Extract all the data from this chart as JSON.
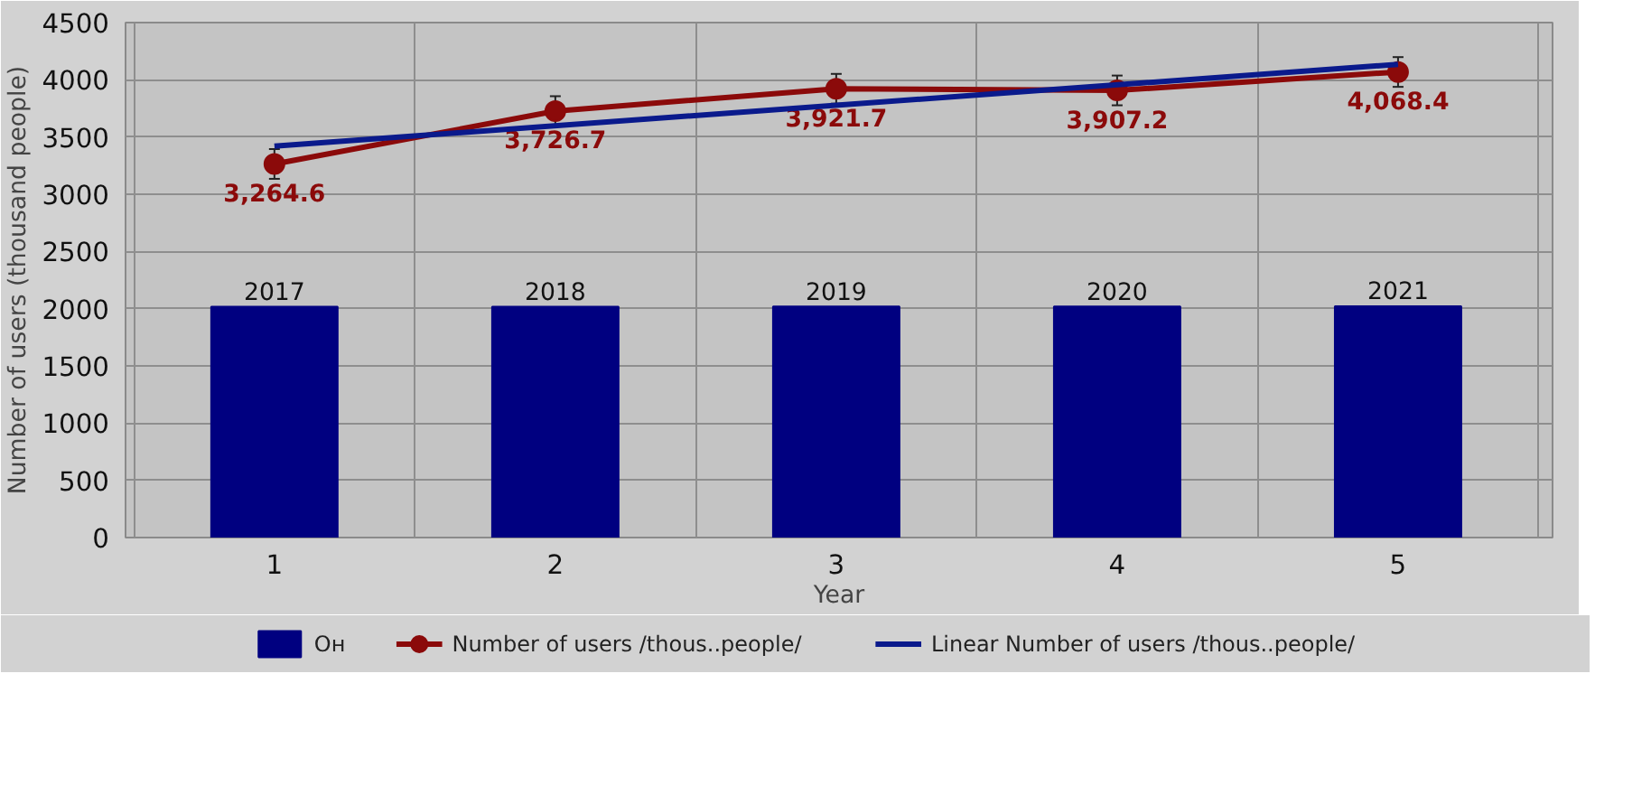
{
  "chart_data": {
    "type": "bar",
    "xlabel": "Year",
    "ylabel": "Number of users (thousand people)",
    "categories": [
      "1",
      "2",
      "3",
      "4",
      "5"
    ],
    "series": [
      {
        "name": "Он",
        "color": "#000080",
        "values": [
          2017,
          2018,
          2019,
          2020,
          2021
        ],
        "value_labels": [
          "2017",
          "2018",
          "2019",
          "2020",
          "2021"
        ]
      },
      {
        "name": "Number of users /thous..people/",
        "type": "line",
        "color": "#8b0a0a",
        "values": [
          3264.6,
          3726.7,
          3921.7,
          3907.2,
          4068.4
        ],
        "value_labels": [
          "3,264.6",
          "3,726.7",
          "3,921.7",
          "3,907.2",
          "4,068.4"
        ],
        "errors": [
          130,
          130,
          130,
          130,
          130
        ],
        "marker": "circle"
      },
      {
        "name": "Linear Number of users /thous..people/",
        "type": "line",
        "color": "#0a1a8c",
        "x": [
          "1",
          "5"
        ],
        "values": [
          3420,
          4135
        ]
      }
    ],
    "ylim": [
      0,
      4500
    ],
    "yticks": [
      0,
      500,
      1000,
      1500,
      2000,
      2500,
      3000,
      3500,
      4000,
      4500
    ],
    "grid": true,
    "legend": "bottom"
  }
}
